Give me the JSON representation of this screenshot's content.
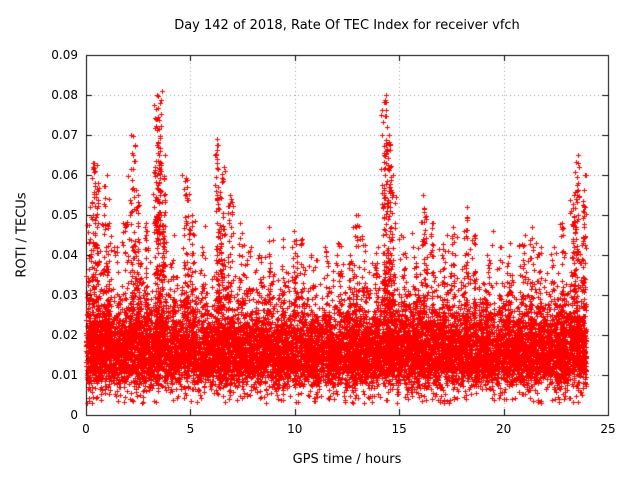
{
  "chart_data": {
    "type": "scatter",
    "title": "Day 142 of 2018, Rate Of TEC Index for receiver vfch",
    "xlabel": "GPS time / hours",
    "ylabel": "ROTI / TECUs",
    "xlim": [
      0,
      25
    ],
    "ylim": [
      0,
      0.09
    ],
    "x_ticks": [
      0,
      5,
      10,
      15,
      20,
      25
    ],
    "x_tick_labels": [
      "0",
      "5",
      "10",
      "15",
      "20",
      "25"
    ],
    "y_ticks": [
      0,
      0.01,
      0.02,
      0.03,
      0.04,
      0.05,
      0.06,
      0.07,
      0.08,
      0.09
    ],
    "y_tick_labels": [
      "0",
      "0.01",
      "0.02",
      "0.03",
      "0.04",
      "0.05",
      "0.06",
      "0.07",
      "0.08",
      "0.09"
    ],
    "grid": true,
    "legend": "none",
    "marker": "plus",
    "marker_color": "#ff0000",
    "grid_color": "#9a9a9a",
    "axis_color": "#000000",
    "data_span_hours": [
      0,
      23.95
    ],
    "point_cloud": {
      "seed": 20181421,
      "n_base_points": 11000,
      "base_median": 0.016,
      "base_log_sigma": 0.33,
      "base_min": 0.003,
      "base_max": 0.048,
      "n_low_sprinkle": 300,
      "low_sprinkle_range": [
        0.003,
        0.008
      ],
      "spike_sigma_hours": 0.07
    },
    "spikes": [
      {
        "x": 0.15,
        "peak": 0.052
      },
      {
        "x": 0.35,
        "peak": 0.063
      },
      {
        "x": 0.55,
        "peak": 0.058
      },
      {
        "x": 0.9,
        "peak": 0.06
      },
      {
        "x": 1.1,
        "peak": 0.048
      },
      {
        "x": 1.5,
        "peak": 0.042
      },
      {
        "x": 1.9,
        "peak": 0.05
      },
      {
        "x": 2.25,
        "peak": 0.07
      },
      {
        "x": 2.5,
        "peak": 0.055
      },
      {
        "x": 2.9,
        "peak": 0.048
      },
      {
        "x": 3.35,
        "peak": 0.078
      },
      {
        "x": 3.5,
        "peak": 0.081
      },
      {
        "x": 3.7,
        "peak": 0.065
      },
      {
        "x": 4.2,
        "peak": 0.045
      },
      {
        "x": 4.8,
        "peak": 0.06
      },
      {
        "x": 5.1,
        "peak": 0.05
      },
      {
        "x": 5.6,
        "peak": 0.042
      },
      {
        "x": 6.3,
        "peak": 0.069
      },
      {
        "x": 6.5,
        "peak": 0.062
      },
      {
        "x": 6.9,
        "peak": 0.055
      },
      {
        "x": 7.4,
        "peak": 0.048
      },
      {
        "x": 7.8,
        "peak": 0.042
      },
      {
        "x": 8.3,
        "peak": 0.04
      },
      {
        "x": 8.8,
        "peak": 0.047
      },
      {
        "x": 9.4,
        "peak": 0.042
      },
      {
        "x": 10.0,
        "peak": 0.046
      },
      {
        "x": 10.3,
        "peak": 0.044
      },
      {
        "x": 10.9,
        "peak": 0.04
      },
      {
        "x": 11.5,
        "peak": 0.042
      },
      {
        "x": 12.1,
        "peak": 0.043
      },
      {
        "x": 12.6,
        "peak": 0.04
      },
      {
        "x": 12.9,
        "peak": 0.05
      },
      {
        "x": 13.3,
        "peak": 0.044
      },
      {
        "x": 13.9,
        "peak": 0.042
      },
      {
        "x": 14.3,
        "peak": 0.08
      },
      {
        "x": 14.5,
        "peak": 0.07
      },
      {
        "x": 14.7,
        "peak": 0.06
      },
      {
        "x": 15.2,
        "peak": 0.045
      },
      {
        "x": 15.8,
        "peak": 0.042
      },
      {
        "x": 16.2,
        "peak": 0.055
      },
      {
        "x": 16.6,
        "peak": 0.048
      },
      {
        "x": 17.1,
        "peak": 0.045
      },
      {
        "x": 17.6,
        "peak": 0.047
      },
      {
        "x": 18.2,
        "peak": 0.052
      },
      {
        "x": 18.6,
        "peak": 0.045
      },
      {
        "x": 19.2,
        "peak": 0.04
      },
      {
        "x": 19.8,
        "peak": 0.042
      },
      {
        "x": 20.3,
        "peak": 0.043
      },
      {
        "x": 20.9,
        "peak": 0.045
      },
      {
        "x": 21.3,
        "peak": 0.047
      },
      {
        "x": 21.7,
        "peak": 0.043
      },
      {
        "x": 22.3,
        "peak": 0.042
      },
      {
        "x": 22.8,
        "peak": 0.048
      },
      {
        "x": 23.3,
        "peak": 0.055
      },
      {
        "x": 23.5,
        "peak": 0.065
      },
      {
        "x": 23.85,
        "peak": 0.06
      }
    ]
  }
}
